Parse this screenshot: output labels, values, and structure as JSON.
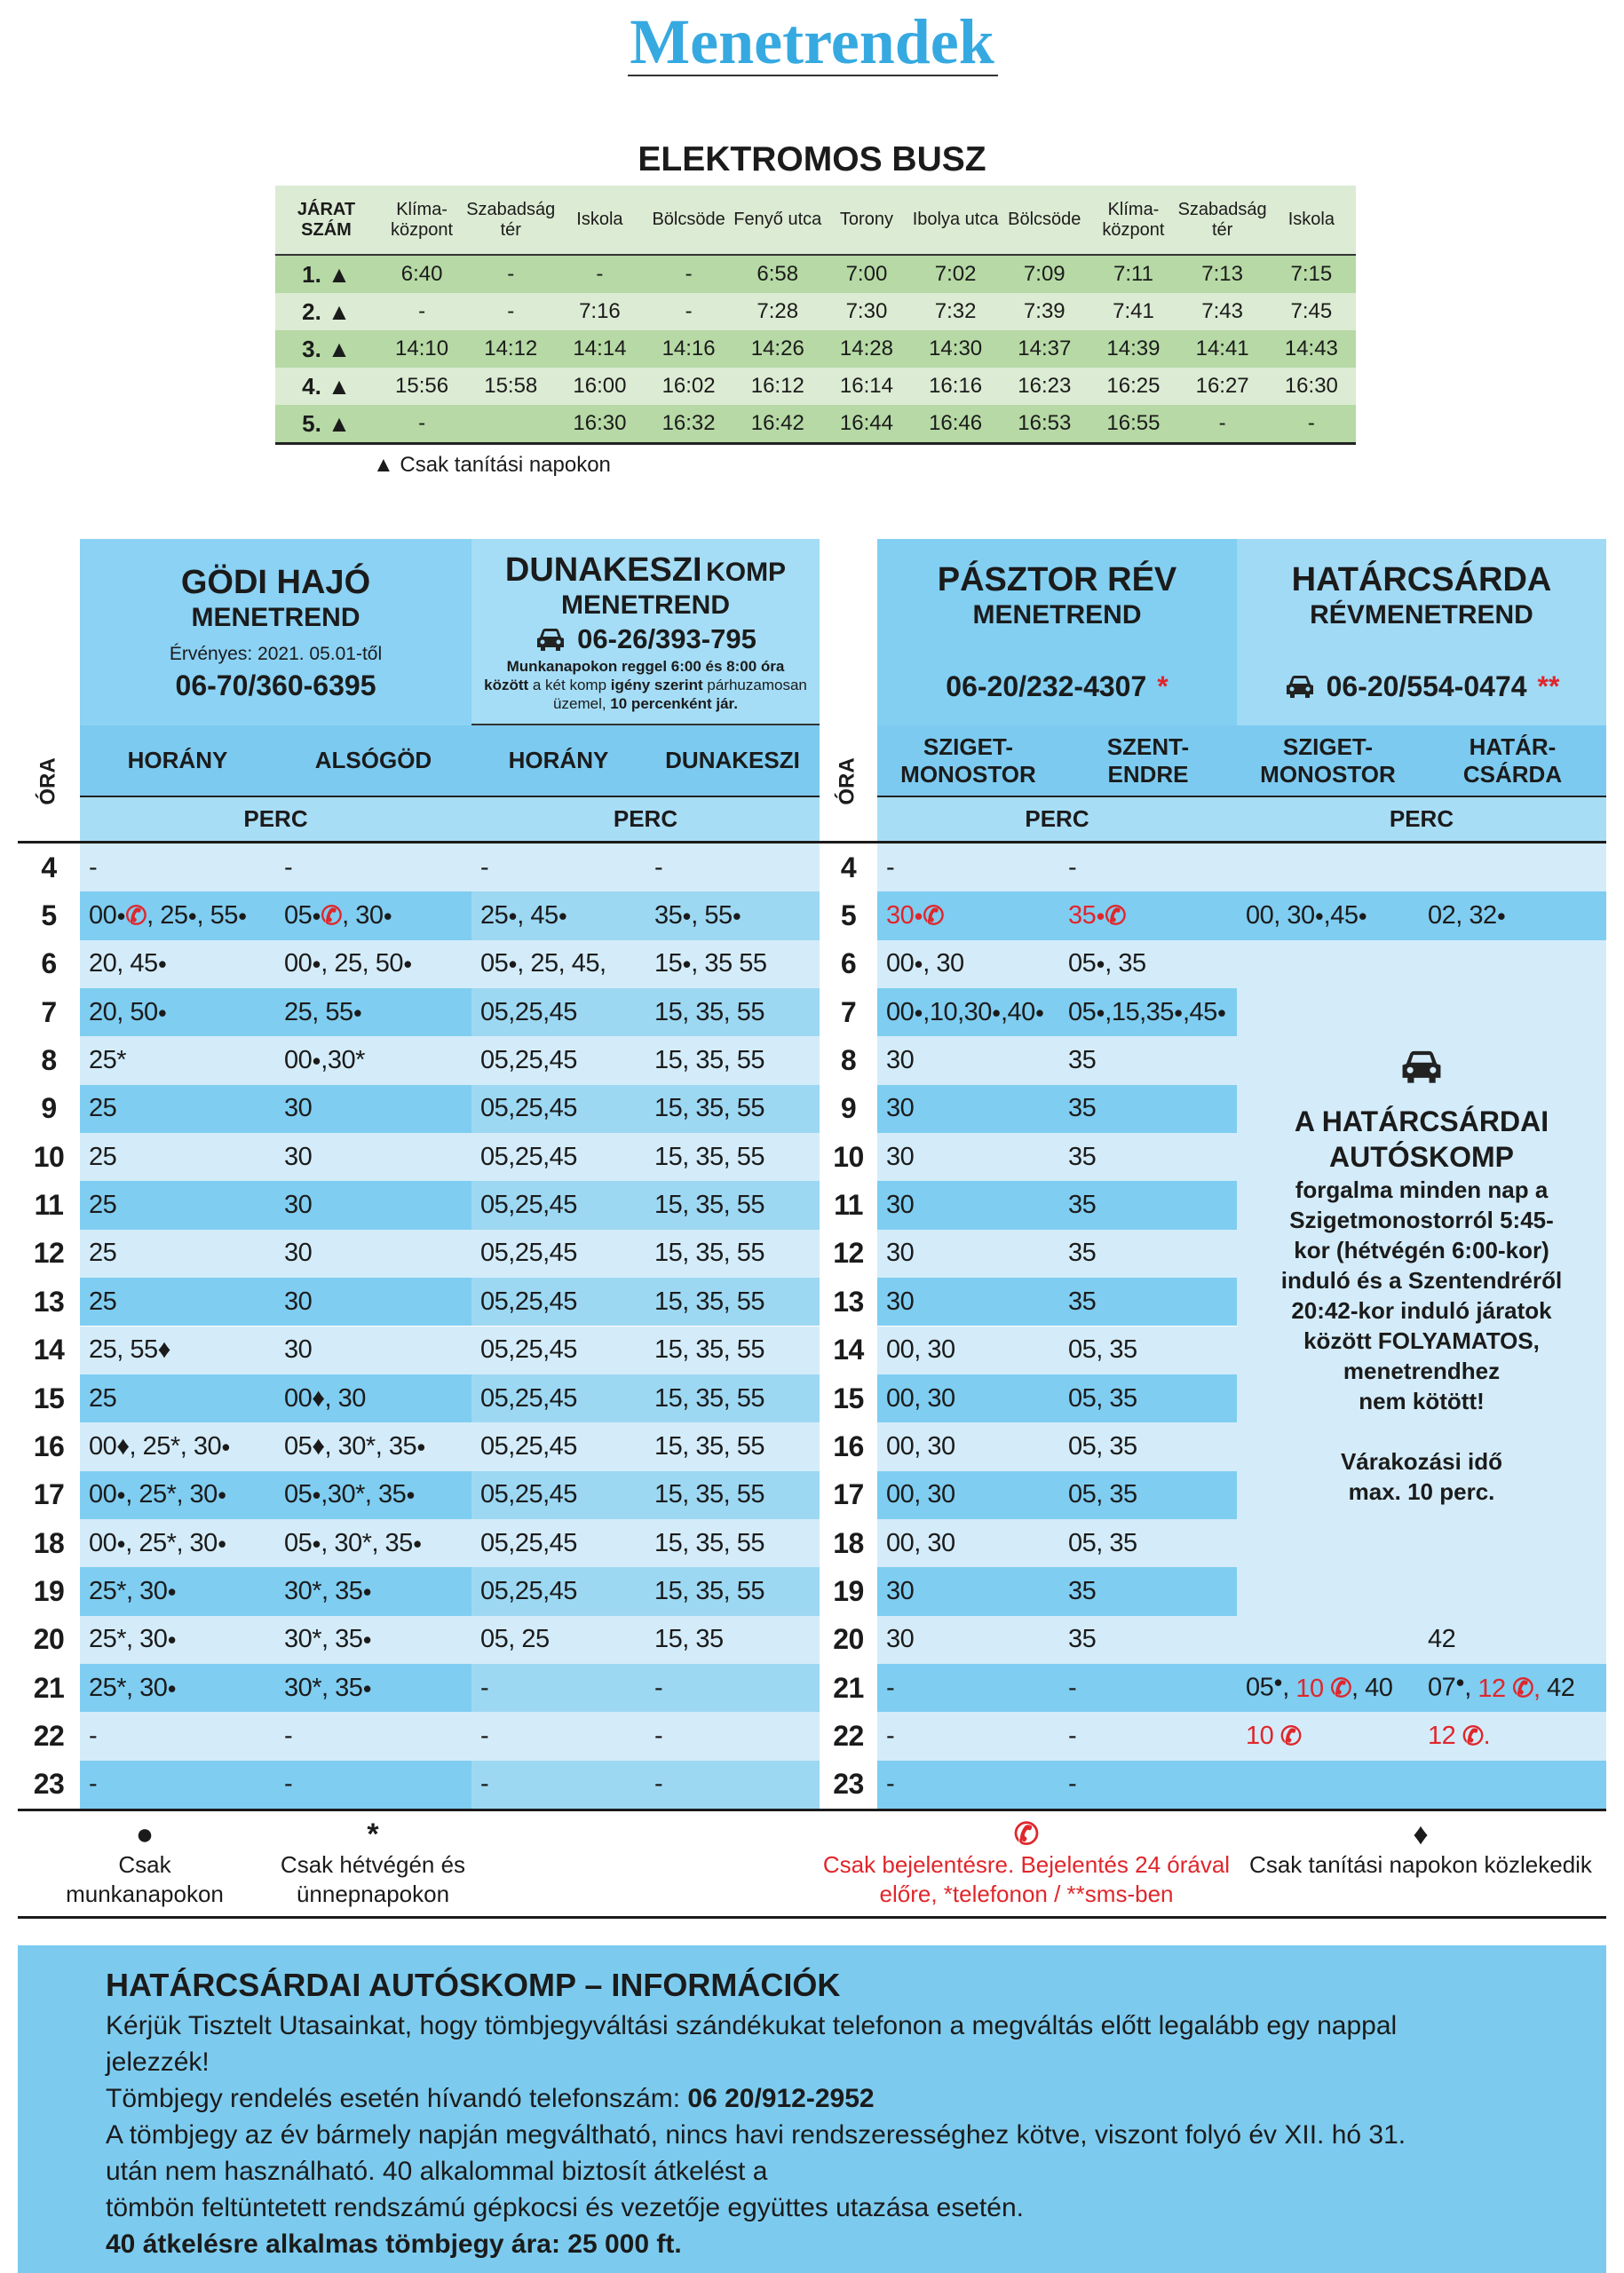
{
  "title": "Menetrendek",
  "bus": {
    "title": "ELEKTROMOS BUSZ",
    "header": [
      "JÁRAT\nSZÁM",
      "Klíma-\nközpont",
      "Szabadság\ntér",
      "Iskola",
      "Bölcsöde",
      "Fenyő utca",
      "Torony",
      "Ibolya utca",
      "Bölcsöde",
      "Klíma-\nközpont",
      "Szabadság\ntér",
      "Iskola"
    ],
    "rows": [
      [
        "1. ▲",
        "6:40",
        "-",
        "-",
        "-",
        "6:58",
        "7:00",
        "7:02",
        "7:09",
        "7:11",
        "7:13",
        "7:15"
      ],
      [
        "2. ▲",
        "-",
        "-",
        "7:16",
        "-",
        "7:28",
        "7:30",
        "7:32",
        "7:39",
        "7:41",
        "7:43",
        "7:45"
      ],
      [
        "3. ▲",
        "14:10",
        "14:12",
        "14:14",
        "14:16",
        "14:26",
        "14:28",
        "14:30",
        "14:37",
        "14:39",
        "14:41",
        "14:43"
      ],
      [
        "4. ▲",
        "15:56",
        "15:58",
        "16:00",
        "16:02",
        "16:12",
        "16:14",
        "16:16",
        "16:23",
        "16:25",
        "16:27",
        "16:30"
      ],
      [
        "5. ▲",
        "-",
        "",
        "16:30",
        "16:32",
        "16:42",
        "16:44",
        "16:46",
        "16:53",
        "16:55",
        "-",
        "-"
      ]
    ],
    "note": "▲ Csak tanítási napokon"
  },
  "godi": {
    "title": "GÖDI HAJÓ",
    "subtitle": "MENETREND",
    "valid": "Érvényes: 2021. 05.01-től",
    "phone": "06-70/360-6395"
  },
  "dunakeszi": {
    "title": "DUNAKESZI",
    "title_suffix": "KOMP",
    "subtitle": "MENETREND",
    "phone": "06-26/393-795",
    "note": [
      {
        "text": "Munkanapokon reggel 6:00 és 8:00 óra között",
        "bold": true
      },
      {
        "text": " a két komp "
      },
      {
        "text": "igény szerint",
        "bold": true
      },
      {
        "text": " párhuzamosan üzemel, "
      },
      {
        "text": "10 percenként jár.",
        "bold": true
      }
    ]
  },
  "pasztor": {
    "title": "PÁSZTOR RÉV",
    "subtitle": "MENETREND",
    "phone": "06-20/232-4307",
    "phone_mark": "*"
  },
  "hatar": {
    "title": "HATÁRCSÁRDA",
    "subtitle": "RÉVMENETREND",
    "phone": "06-20/554-0474",
    "phone_mark": "**"
  },
  "timetable": {
    "hour_label": "ÓRA",
    "unit_label": "PERC",
    "columns": [
      "HORÁNY",
      "ALSÓGÖD",
      "HORÁNY",
      "DUNAKESZI",
      "SZIGET-\nMONOSTOR",
      "SZENT-\nENDRE",
      "SZIGET-\nMONOSTOR",
      "HATÁR-\nCSÁRDA"
    ],
    "rows": [
      {
        "hour": 4,
        "cells": [
          "-",
          "-",
          "-",
          "-",
          "-",
          "-",
          null,
          null
        ]
      },
      {
        "hour": 5,
        "cells": [
          "00●✆, 25●, 55●",
          "05●✆, 30●",
          "25●, 45●",
          "35●, 55●",
          {
            "text": "30●✆",
            "color": "#e0262b"
          },
          {
            "text": "35●✆",
            "color": "#e0262b"
          },
          "00, 30●,45●",
          "02, 32●"
        ]
      },
      {
        "hour": 6,
        "cells": [
          "20, 45●",
          "00●, 25, 50●",
          "05●, 25, 45,",
          "15●, 35 55",
          "00●, 30",
          "05●, 35"
        ]
      },
      {
        "hour": 7,
        "cells": [
          "20, 50●",
          "25, 55●",
          "05,25,45",
          "15, 35, 55",
          "00●,10,30●,40●",
          "05●,15,35●,45●"
        ]
      },
      {
        "hour": 8,
        "cells": [
          "25*",
          "00●,30*",
          "05,25,45",
          "15, 35, 55",
          "30",
          "35"
        ]
      },
      {
        "hour": 9,
        "cells": [
          "25",
          "30",
          "05,25,45",
          "15, 35, 55",
          "30",
          "35"
        ]
      },
      {
        "hour": 10,
        "cells": [
          "25",
          "30",
          "05,25,45",
          "15, 35, 55",
          "30",
          "35"
        ]
      },
      {
        "hour": 11,
        "cells": [
          "25",
          "30",
          "05,25,45",
          "15, 35, 55",
          "30",
          "35"
        ]
      },
      {
        "hour": 12,
        "cells": [
          "25",
          "30",
          "05,25,45",
          "15, 35, 55",
          "30",
          "35"
        ]
      },
      {
        "hour": 13,
        "cells": [
          "25",
          "30",
          "05,25,45",
          "15, 35, 55",
          "30",
          "35"
        ]
      },
      {
        "hour": 14,
        "cells": [
          "25, 55♦",
          "30",
          "05,25,45",
          "15, 35, 55",
          "00, 30",
          "05, 35"
        ]
      },
      {
        "hour": 15,
        "cells": [
          "25",
          "00♦, 30",
          "05,25,45",
          "15, 35, 55",
          "00, 30",
          "05, 35"
        ]
      },
      {
        "hour": 16,
        "cells": [
          "00♦, 25*, 30●",
          "05♦, 30*, 35●",
          "05,25,45",
          "15, 35, 55",
          "00, 30",
          "05, 35"
        ]
      },
      {
        "hour": 17,
        "cells": [
          "00●, 25*, 30●",
          "05●,30*, 35●",
          "05,25,45",
          "15, 35, 55",
          "00, 30",
          "05, 35"
        ]
      },
      {
        "hour": 18,
        "cells": [
          "00●, 25*, 30●",
          "05●, 30*, 35●",
          "05,25,45",
          "15, 35, 55",
          "00, 30",
          "05, 35"
        ]
      },
      {
        "hour": 19,
        "cells": [
          "25*, 30●",
          "30*, 35●",
          "05,25,45",
          "15, 35, 55",
          "30",
          "35"
        ]
      },
      {
        "hour": 20,
        "cells": [
          "25*, 30●",
          "30*, 35●",
          "05, 25",
          "15, 35",
          "30",
          "35",
          null,
          "42"
        ]
      },
      {
        "hour": 21,
        "cells": [
          "25*, 30●",
          "30*, 35●",
          "-",
          "-",
          "-",
          "-",
          [
            {
              "text": "05●, "
            },
            {
              "text": "10 ✆",
              "color": "#e0262b"
            },
            {
              "text": ", 40"
            }
          ],
          [
            {
              "text": "07●, "
            },
            {
              "text": "12 ✆,",
              "color": "#e0262b"
            },
            {
              "text": " 42"
            }
          ]
        ]
      },
      {
        "hour": 22,
        "cells": [
          "-",
          "-",
          "-",
          "-",
          "-",
          "-",
          {
            "text": "10 ✆",
            "color": "#e0262b"
          },
          {
            "text": "12 ✆.",
            "color": "#e0262b"
          }
        ]
      },
      {
        "hour": 23,
        "cells": [
          "-",
          "-",
          "-",
          "-",
          "-",
          "-",
          null,
          null
        ]
      }
    ],
    "hatar_block": {
      "title": [
        "A HATÁRCSÁRDAI",
        "AUTÓSKOMP"
      ],
      "lines": [
        "forgalma minden nap a",
        "Szigetmonostorról 5:45-",
        "kor (hétvégén 6:00-kor)",
        "induló és a Szentendréről",
        "20:42-kor induló járatok",
        "között FOLYAMATOS,",
        "menetrendhez",
        "nem kötött!"
      ],
      "wait": [
        "Várakozási idő",
        "max. 10 perc."
      ]
    },
    "legend": [
      {
        "symbol": "●",
        "text": "Csak\nmunkanapokon"
      },
      {
        "symbol": "*",
        "text": "Csak hétvégén és\nünnepnapokon"
      },
      {
        "symbol": "✆",
        "text": "Csak bejelentésre. Bejelentés 24 órával\nelőre, *telefonon / **sms-ben",
        "color": "#e0262b"
      },
      {
        "symbol": "♦",
        "text": "Csak tanítási napokon közlekedik"
      }
    ]
  },
  "info": {
    "title": "HATÁRCSÁRDAI AUTÓSKOMP –  INFORMÁCIÓK",
    "request": [
      "Kérjük Tisztelt Utasainkat, hogy tömbjegyváltási szándékukat telefonon a megváltás előtt legalább egy nappal",
      "jelezzék!"
    ],
    "phone_label": "Tömbjegy rendelés esetén hívandó telefonszám: ",
    "phone": "06 20/912-2952",
    "validity": [
      "A tömbjegy az év bármely napján megváltható, nincs havi rendszerességhez kötve, viszont folyó év XII. hó 31.",
      "után nem használható. 40 alkalommal biztosít átkelést a",
      "tömbön feltüntetett rendszámú gépkocsi és vezetője együttes utazása esetén."
    ],
    "price": "40 átkelésre alkalmas tömbjegy ára: 25 000 ft."
  }
}
